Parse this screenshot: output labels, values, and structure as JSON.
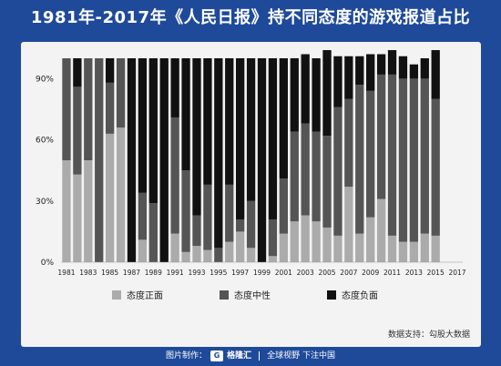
{
  "title": "1981年-2017年《人民日报》持不同态度的游戏报道占比",
  "footer": {
    "made_label": "图片制作：",
    "brand": "格隆汇",
    "slogan": "全球视野 下注中国"
  },
  "source": "数据支持：勾股大数据",
  "colors": {
    "positive": "#ababab",
    "neutral": "#555555",
    "negative": "#111111",
    "background": "#1f4a9a",
    "panel": "#f3f3f3"
  },
  "chart_data": {
    "type": "bar",
    "stacked": true,
    "title": "",
    "xlabel": "",
    "ylabel": "",
    "ylim": [
      0,
      1.0
    ],
    "yticks": [
      0,
      0.3,
      0.6,
      0.9
    ],
    "ytick_labels": [
      "0%",
      "30%",
      "60%",
      "90%"
    ],
    "grid": false,
    "legend_position": "bottom",
    "categories": [
      "1981",
      "1982",
      "1983",
      "1984",
      "1985",
      "1986",
      "1987",
      "1988",
      "1989",
      "1990",
      "1991",
      "1992",
      "1993",
      "1994",
      "1995",
      "1996",
      "1997",
      "1998",
      "1999",
      "2000",
      "2001",
      "2002",
      "2003",
      "2004",
      "2005",
      "2006",
      "2007",
      "2008",
      "2009",
      "2010",
      "2011",
      "2012",
      "2013",
      "2014",
      "2015",
      "2016",
      "2017"
    ],
    "xtick_labels": [
      "1981",
      "1983",
      "1985",
      "1987",
      "1989",
      "1991",
      "1993",
      "1995",
      "1997",
      "1999",
      "2001",
      "2003",
      "2005",
      "2007",
      "2009",
      "2011",
      "2013",
      "2015",
      "2017"
    ],
    "series": [
      {
        "name": "态度正面",
        "color": "#ababab",
        "values": [
          0.5,
          0.43,
          0.5,
          0.0,
          0.63,
          0.66,
          0.0,
          0.11,
          0.0,
          0.0,
          0.14,
          0.05,
          0.08,
          0.06,
          0.0,
          0.1,
          0.15,
          0.07,
          0.0,
          0.03,
          0.14,
          0.2,
          0.23,
          0.2,
          0.17,
          0.13,
          0.37,
          0.14,
          0.22,
          0.31,
          0.13,
          0.1,
          0.1,
          0.14,
          0.13,
          0.0,
          0.0
        ]
      },
      {
        "name": "态度中性",
        "color": "#555555",
        "values": [
          0.5,
          0.43,
          0.5,
          1.0,
          0.25,
          0.34,
          0.0,
          0.23,
          0.29,
          0.0,
          0.57,
          0.4,
          0.15,
          0.32,
          0.07,
          0.28,
          0.06,
          0.23,
          0.0,
          0.18,
          0.27,
          0.44,
          0.45,
          0.44,
          0.45,
          0.63,
          0.43,
          0.73,
          0.62,
          0.61,
          0.79,
          0.8,
          0.8,
          0.76,
          0.67,
          0.0,
          0.0
        ]
      },
      {
        "name": "态度负面",
        "color": "#111111",
        "values": [
          0.0,
          0.14,
          0.0,
          0.0,
          0.12,
          0.0,
          1.0,
          0.66,
          0.71,
          1.0,
          0.29,
          0.55,
          0.77,
          0.62,
          0.93,
          0.62,
          0.79,
          0.7,
          1.0,
          0.79,
          0.59,
          0.36,
          0.34,
          0.36,
          0.42,
          0.25,
          0.21,
          0.14,
          0.18,
          0.1,
          0.12,
          0.11,
          0.07,
          0.1,
          0.24,
          0.0,
          0.0
        ]
      }
    ]
  }
}
